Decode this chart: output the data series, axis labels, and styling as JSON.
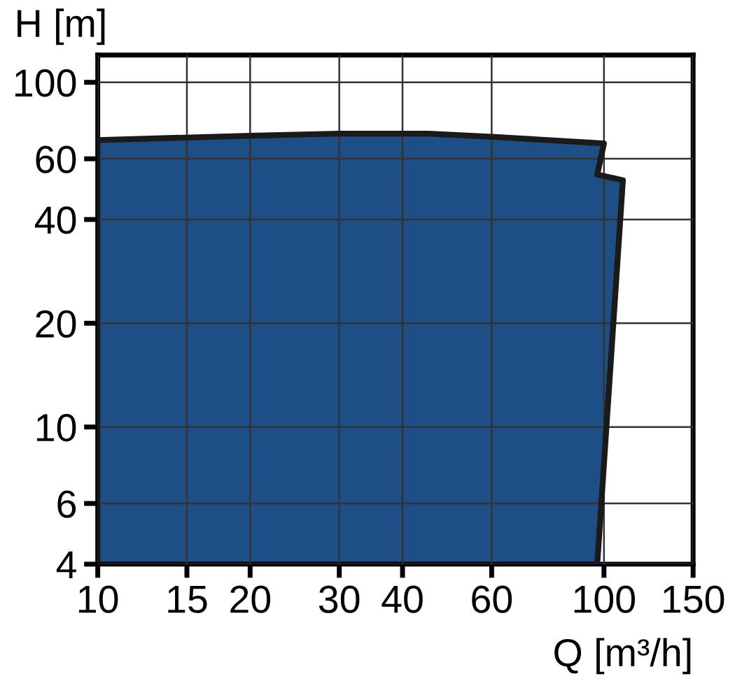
{
  "chart_data": {
    "type": "area",
    "xlabel": "Q [m³/h]",
    "ylabel": "H [m]",
    "log": "xy",
    "series": [
      {
        "color": "#1d4f86",
        "x": [
          10,
          20,
          30,
          45,
          60,
          100,
          97,
          109,
          97
        ],
        "values": [
          68,
          70,
          71,
          71,
          69.5,
          66.5,
          54,
          52,
          4
        ]
      }
    ],
    "xlim": [
      10,
      150
    ],
    "ylim": [
      4,
      120
    ],
    "xticks": [
      10,
      15,
      20,
      30,
      40,
      60,
      100,
      150
    ],
    "yticks": [
      4,
      6,
      10,
      20,
      40,
      60,
      100
    ],
    "grid": true,
    "legend": false
  }
}
